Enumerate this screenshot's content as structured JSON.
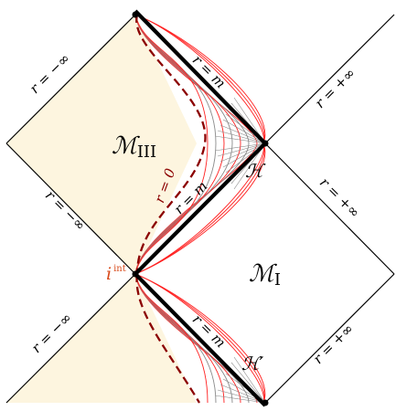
{
  "diagram": {
    "colors": {
      "region_fill": "#fdf5df",
      "edge": "#000000",
      "horizon": "#000000",
      "r0_curve": "#8b0000",
      "red_lines": "#ff2020",
      "gray_lines": "#8a8a8a",
      "i_int": "#d84a1a"
    },
    "labels": {
      "r_minus_inf": "r = −∞",
      "r_plus_inf": "r = +∞",
      "r_eq_m": "r = m",
      "r_eq_0": "r = 0",
      "region_III": "ℳ",
      "region_III_sub": "III",
      "region_I": "ℳ",
      "region_I_sub": "I",
      "horizon": "ℋ",
      "horizon_prime": "ℋ′",
      "i_int": "i",
      "i_int_sup": "int"
    }
  }
}
